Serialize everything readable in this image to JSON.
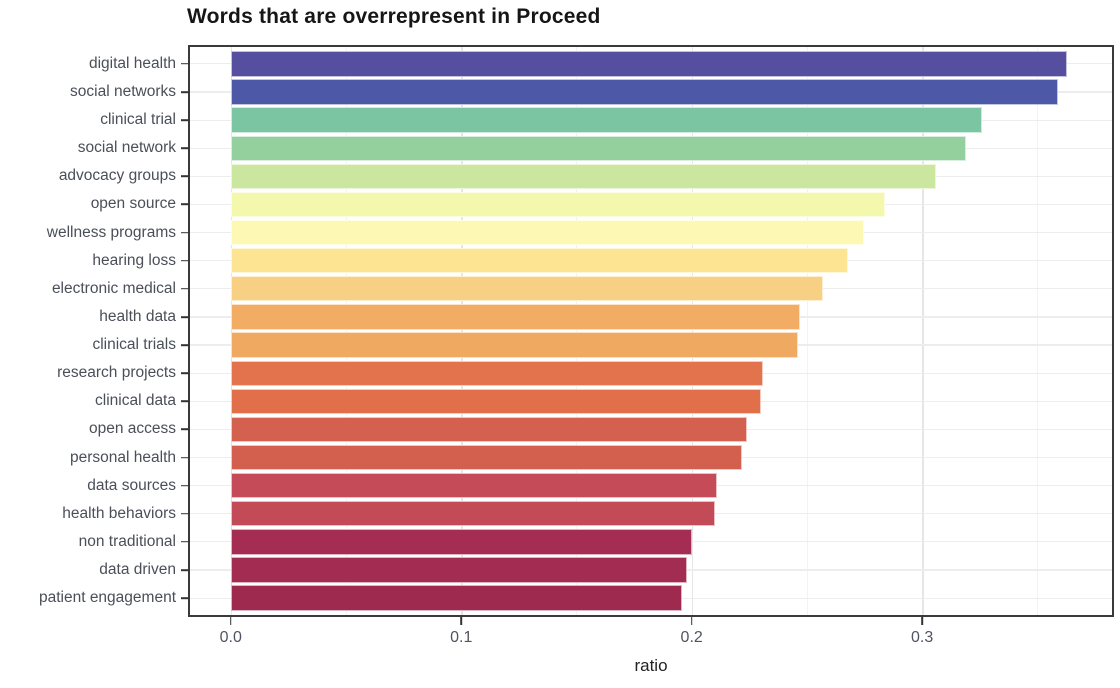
{
  "chart_data": {
    "type": "bar",
    "orientation": "horizontal",
    "title": "Words that are overrepresent in Proceed",
    "xlabel": "ratio",
    "ylabel": "",
    "legend": "none",
    "grid": "vertical major+minor, horizontal major at category centers",
    "xlim": [
      -0.0177,
      0.3824
    ],
    "x_ticks": [
      0.0,
      0.1,
      0.2,
      0.3
    ],
    "x_tick_labels": [
      "0.0",
      "0.1",
      "0.2",
      "0.3"
    ],
    "x_minor_ticks": [
      0.05,
      0.15,
      0.25,
      0.35
    ],
    "categories": [
      "digital health",
      "social networks",
      "clinical trial",
      "social network",
      "advocacy groups",
      "open source",
      "wellness programs",
      "hearing loss",
      "electronic medical",
      "health data",
      "clinical trials",
      "research projects",
      "clinical data",
      "open access",
      "personal health",
      "data sources",
      "health behaviors",
      "non traditional",
      "data driven",
      "patient engagement"
    ],
    "values": [
      0.363,
      0.359,
      0.326,
      0.319,
      0.306,
      0.284,
      0.275,
      0.268,
      0.257,
      0.247,
      0.246,
      0.231,
      0.23,
      0.224,
      0.222,
      0.211,
      0.21,
      0.2,
      0.198,
      0.196
    ],
    "bar_colors": [
      "#564fa0",
      "#4d59a7",
      "#7cc5a3",
      "#94cf9e",
      "#cbe69e",
      "#f4f8ad",
      "#fdf9b5",
      "#fce493",
      "#f7d083",
      "#f2ac63",
      "#f0a961",
      "#e2734d",
      "#e06f4a",
      "#d4614f",
      "#d35f4e",
      "#c54b58",
      "#c34a57",
      "#a52d53",
      "#a32c52",
      "#9e2a4f"
    ]
  },
  "colors": {
    "background": "#ffffff",
    "panel_border": "#3a3a3a",
    "grid_major": "#e6e6e6",
    "grid_minor": "#f3f3f3",
    "axis_text": "#4a4f58",
    "title_text": "#161616"
  }
}
